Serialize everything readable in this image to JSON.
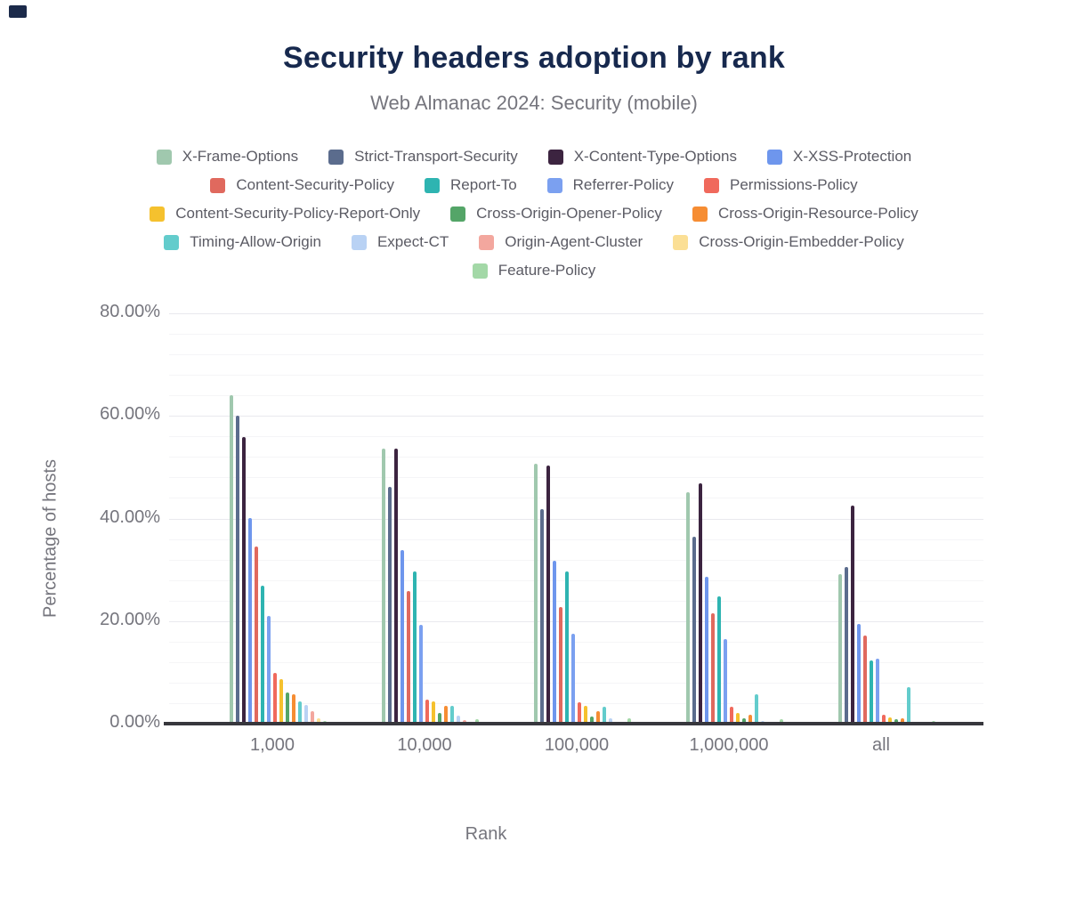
{
  "header": {
    "title": "Security headers adoption by rank",
    "subtitle": "Web Almanac 2024: Security (mobile)"
  },
  "axes": {
    "x_title": "Rank",
    "y_title": "Percentage of hosts",
    "y_tick_labels": [
      "0.00%",
      "20.00%",
      "40.00%",
      "60.00%",
      "80.00%"
    ]
  },
  "chart_data": {
    "type": "bar",
    "title": "Security headers adoption by rank",
    "subtitle": "Web Almanac 2024: Security (mobile)",
    "xlabel": "Rank",
    "ylabel": "Percentage of hosts",
    "ylim": [
      0,
      80
    ],
    "y_major_step": 20,
    "y_minor_step": 4,
    "grid": "horizontal",
    "legend_position": "top",
    "legend_rows": [
      4,
      4,
      3,
      4,
      1
    ],
    "categories": [
      "1,000",
      "10,000",
      "100,000",
      "1,000,000",
      "all"
    ],
    "series": [
      {
        "name": "X-Frame-Options",
        "color": "#a0c8ae",
        "values": [
          64.0,
          53.7,
          50.6,
          45.2,
          29.2
        ]
      },
      {
        "name": "Strict-Transport-Security",
        "color": "#5b6c8d",
        "values": [
          60.1,
          46.2,
          41.9,
          36.4,
          30.6
        ]
      },
      {
        "name": "X-Content-Type-Options",
        "color": "#3c2440",
        "values": [
          55.9,
          53.6,
          50.3,
          46.9,
          42.6
        ]
      },
      {
        "name": "X-XSS-Protection",
        "color": "#6e96ed",
        "values": [
          40.0,
          33.9,
          31.7,
          28.7,
          19.5
        ]
      },
      {
        "name": "Content-Security-Policy",
        "color": "#e0695e",
        "values": [
          34.5,
          25.8,
          22.8,
          21.6,
          17.2
        ]
      },
      {
        "name": "Report-To",
        "color": "#2eb4b1",
        "values": [
          26.9,
          29.7,
          29.6,
          24.9,
          12.3
        ]
      },
      {
        "name": "Referrer-Policy",
        "color": "#7ba0f0",
        "values": [
          21.0,
          19.3,
          17.5,
          16.5,
          12.7
        ]
      },
      {
        "name": "Permissions-Policy",
        "color": "#f0695c",
        "values": [
          9.9,
          4.7,
          4.2,
          3.3,
          1.8
        ]
      },
      {
        "name": "Content-Security-Policy-Report-Only",
        "color": "#f5c12e",
        "values": [
          8.6,
          4.3,
          3.5,
          2.0,
          1.2
        ]
      },
      {
        "name": "Cross-Origin-Opener-Policy",
        "color": "#54a568",
        "values": [
          6.0,
          2.0,
          1.4,
          1.0,
          0.8
        ]
      },
      {
        "name": "Cross-Origin-Resource-Policy",
        "color": "#f68d33",
        "values": [
          5.7,
          3.5,
          2.4,
          1.7,
          1.1
        ]
      },
      {
        "name": "Timing-Allow-Origin",
        "color": "#63cccc",
        "values": [
          4.3,
          3.4,
          3.3,
          5.8,
          7.2
        ]
      },
      {
        "name": "Expect-CT",
        "color": "#b9d2f4",
        "values": [
          3.6,
          1.5,
          1.0,
          0.5,
          0.4
        ]
      },
      {
        "name": "Origin-Agent-Cluster",
        "color": "#f3a79e",
        "values": [
          2.4,
          0.7,
          0.3,
          0.3,
          0.3
        ]
      },
      {
        "name": "Cross-Origin-Embedder-Policy",
        "color": "#fbdf95",
        "values": [
          1.0,
          0.4,
          0.2,
          0.2,
          0.2
        ]
      },
      {
        "name": "Feature-Policy",
        "color": "#a3d8a7",
        "values": [
          0.5,
          0.9,
          1.0,
          0.8,
          0.5
        ]
      }
    ]
  }
}
